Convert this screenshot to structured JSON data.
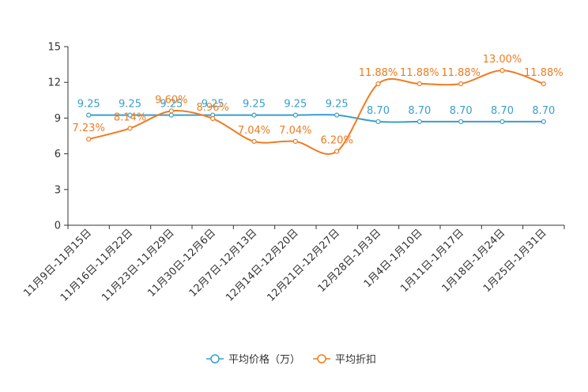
{
  "chart_data": {
    "type": "line",
    "title": "",
    "xlabel": "",
    "ylabel": "",
    "ylim": [
      0,
      15
    ],
    "yticks": [
      0,
      3,
      6,
      9,
      12,
      15
    ],
    "grid": false,
    "legend_position": "bottom-center",
    "categories": [
      "11月9日-11月15日",
      "11月16日-11月22日",
      "11月23日-11月29日",
      "11月30日-12月6日",
      "12月7日-12月13日",
      "12月14日-12月20日",
      "12月21日-12月27日",
      "12月28日-1月3日",
      "1月4日-1月10日",
      "1月11日-1月17日",
      "1月18日-1月24日",
      "1月25日-1月31日"
    ],
    "series": [
      {
        "name": "平均价格（万）",
        "color": "#3a9fcb",
        "values": [
          9.25,
          9.25,
          9.25,
          9.25,
          9.25,
          9.25,
          9.25,
          8.7,
          8.7,
          8.7,
          8.7,
          8.7
        ],
        "labels": [
          "9.25",
          "9.25",
          "9.25",
          "9.25",
          "9.25",
          "9.25",
          "9.25",
          "8.70",
          "8.70",
          "8.70",
          "8.70",
          "8.70"
        ]
      },
      {
        "name": "平均折扣",
        "color": "#f07b1f",
        "values": [
          7.23,
          8.14,
          9.6,
          8.96,
          7.04,
          7.04,
          6.2,
          11.88,
          11.88,
          11.88,
          13.0,
          11.88
        ],
        "labels": [
          "7.23%",
          "8.14%",
          "9.60%",
          "8.96%",
          "7.04%",
          "7.04%",
          "6.20%",
          "11.88%",
          "11.88%",
          "11.88%",
          "13.00%",
          "11.88%"
        ]
      }
    ]
  }
}
